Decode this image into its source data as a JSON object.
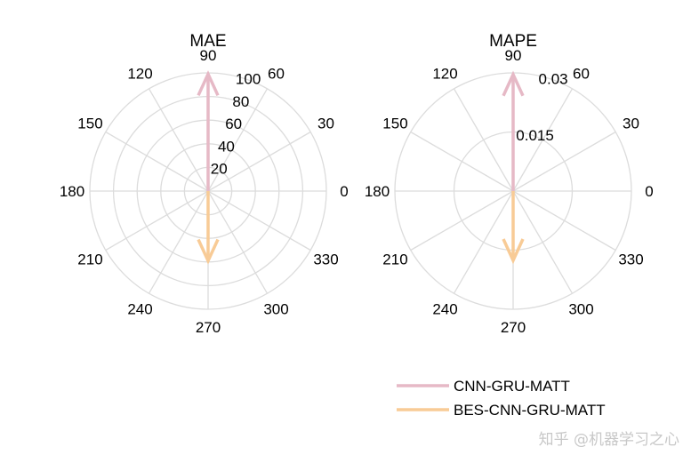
{
  "chart_data": [
    {
      "type": "polar-compass",
      "title": "MAE",
      "rlim": [
        0,
        100
      ],
      "rticks": [
        20,
        40,
        60,
        80,
        100
      ],
      "rtick_labels": [
        "20",
        "40",
        "60",
        "80",
        "100"
      ],
      "theta_ticks": [
        0,
        30,
        60,
        90,
        120,
        150,
        180,
        210,
        240,
        270,
        300,
        330
      ],
      "theta_labels": [
        "0",
        "30",
        "60",
        "90",
        "120",
        "150",
        "180",
        "210",
        "240",
        "270",
        "300",
        "330"
      ],
      "grid": true,
      "series": [
        {
          "name": "CNN-GRU-MATT",
          "angle": 90,
          "value": 99,
          "color": "#e6b9c6"
        },
        {
          "name": "BES-CNN-GRU-MATT",
          "angle": 270,
          "value": 59,
          "color": "#f8cb96"
        }
      ]
    },
    {
      "type": "polar-compass",
      "title": "MAPE",
      "rlim": [
        0,
        0.03
      ],
      "rticks": [
        0.015,
        0.03
      ],
      "rtick_labels": [
        "0.015",
        "0.03"
      ],
      "theta_ticks": [
        0,
        30,
        60,
        90,
        120,
        150,
        180,
        210,
        240,
        270,
        300,
        330
      ],
      "theta_labels": [
        "0",
        "30",
        "60",
        "90",
        "120",
        "150",
        "180",
        "210",
        "240",
        "270",
        "300",
        "330"
      ],
      "grid": true,
      "series": [
        {
          "name": "CNN-GRU-MATT",
          "angle": 90,
          "value": 0.0296,
          "color": "#e6b9c6"
        },
        {
          "name": "BES-CNN-GRU-MATT",
          "angle": 270,
          "value": 0.0176,
          "color": "#f8cb96"
        }
      ]
    }
  ],
  "legend": {
    "placement": "bottom-right",
    "items": [
      {
        "label": "CNN-GRU-MATT",
        "color": "#e6b9c6"
      },
      {
        "label": "BES-CNN-GRU-MATT",
        "color": "#f8cb96"
      }
    ]
  },
  "watermark": "知乎 @机器学习之心"
}
